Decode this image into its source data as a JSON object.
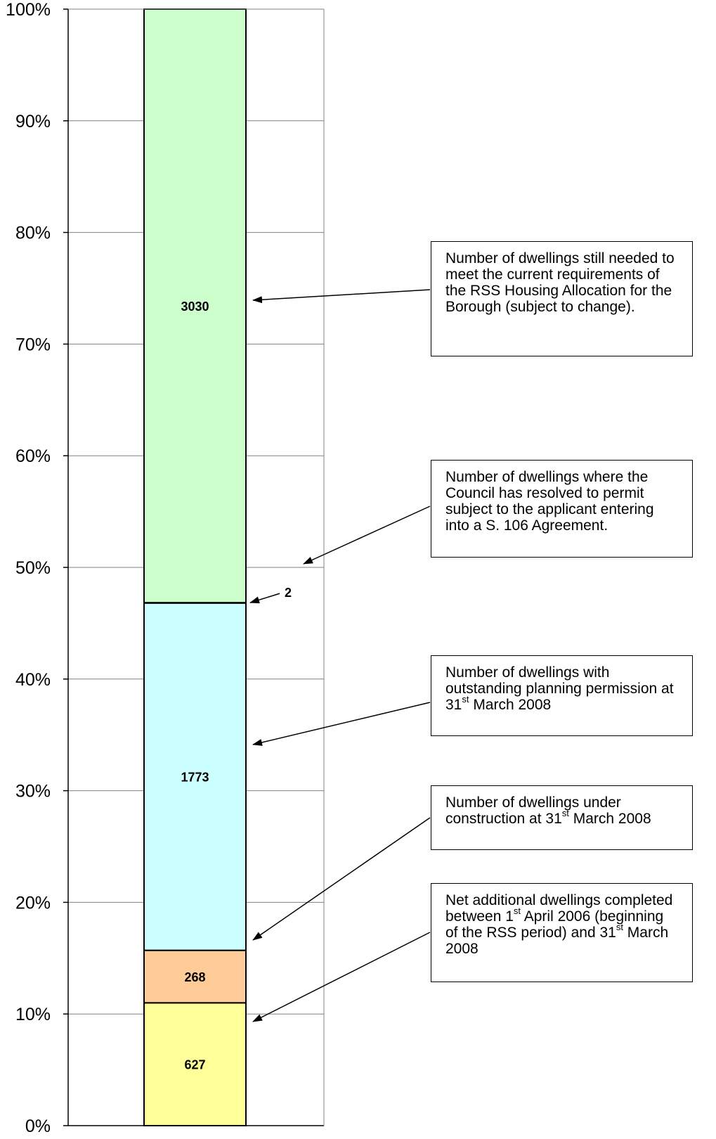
{
  "chart_data": {
    "type": "bar",
    "stacked": true,
    "normalized": true,
    "ylim": [
      0,
      100
    ],
    "yticks": [
      "0%",
      "10%",
      "20%",
      "30%",
      "40%",
      "50%",
      "60%",
      "70%",
      "80%",
      "90%",
      "100%"
    ],
    "grid": true,
    "segments": [
      {
        "value": 627,
        "label": "627",
        "color": "#FFFF99"
      },
      {
        "value": 268,
        "label": "268",
        "color": "#FFCC99"
      },
      {
        "value": 1773,
        "label": "1773",
        "color": "#CCFFFF"
      },
      {
        "value": 2,
        "label": "2",
        "color": "#CCFFFF"
      },
      {
        "value": 3030,
        "label": "3030",
        "color": "#CCFFCC"
      }
    ],
    "annotations": [
      {
        "target": "3030",
        "text_parts": [
          "Number of dwellings still needed to meet the current requirements of the RSS Housing Allocation for the Borough (subject to change)."
        ]
      },
      {
        "target": "2",
        "text_parts": [
          "Number of dwellings where the Council has resolved to permit subject to the applicant entering into a S. 106 Agreement."
        ]
      },
      {
        "target": "1773",
        "text_parts": [
          "Number of dwellings with outstanding planning permission at 31",
          "st",
          " March 2008"
        ]
      },
      {
        "target": "268",
        "text_parts": [
          "Number of dwellings under construction at 31",
          "st",
          " March 2008"
        ]
      },
      {
        "target": "627",
        "text_parts": [
          "Net additional dwellings completed between 1",
          "st",
          " April 2006 (beginning of the RSS period) and 31",
          "st",
          " March 2008"
        ]
      }
    ]
  }
}
